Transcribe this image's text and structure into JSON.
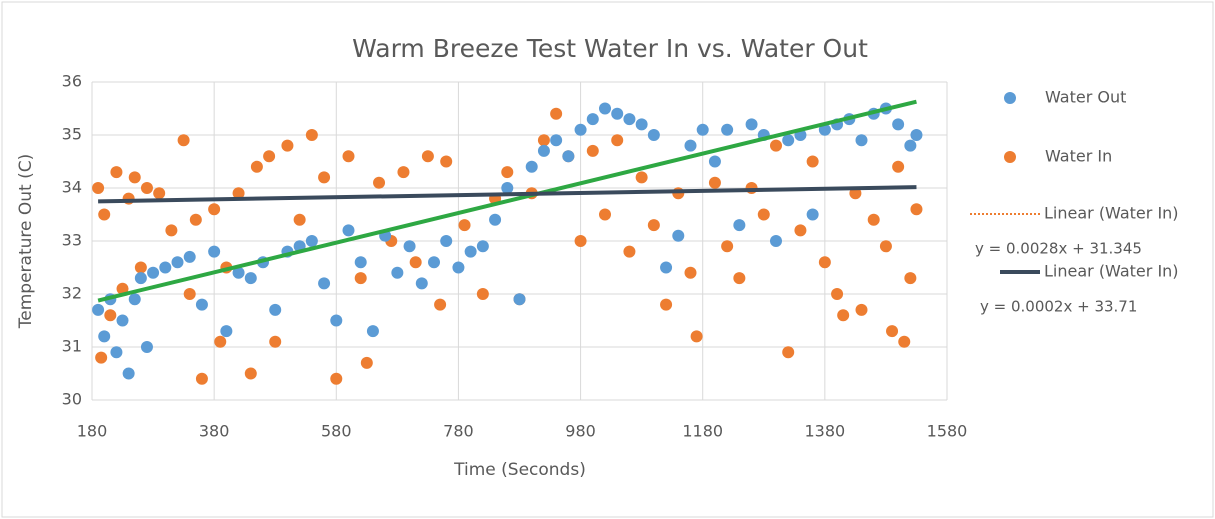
{
  "chart_data": {
    "type": "scatter",
    "title": "Warm Breeze Test Water In vs. Water Out",
    "x_label": "Time (Seconds)",
    "y_label": "Temperature Out (C)",
    "xlim": [
      180,
      1580
    ],
    "xticks": [
      180,
      380,
      580,
      780,
      980,
      1180,
      1380,
      1580
    ],
    "ylim": [
      30,
      36
    ],
    "yticks": [
      30,
      31,
      32,
      33,
      34,
      35,
      36
    ],
    "grid": true,
    "legend": "right",
    "series": [
      {
        "name": "Water Out",
        "color": "#5b9bd5",
        "x": [
          190,
          200,
          210,
          220,
          230,
          240,
          250,
          260,
          270,
          280,
          300,
          320,
          340,
          360,
          380,
          400,
          420,
          440,
          460,
          480,
          500,
          520,
          540,
          560,
          580,
          600,
          620,
          640,
          660,
          680,
          700,
          720,
          740,
          760,
          780,
          800,
          820,
          840,
          860,
          880,
          900,
          920,
          940,
          960,
          980,
          1000,
          1020,
          1040,
          1060,
          1080,
          1100,
          1120,
          1140,
          1160,
          1180,
          1200,
          1220,
          1240,
          1260,
          1280,
          1300,
          1320,
          1340,
          1360,
          1380,
          1400,
          1420,
          1440,
          1460,
          1480,
          1500,
          1520,
          1530
        ],
        "values": [
          31.7,
          31.2,
          31.9,
          30.9,
          31.5,
          30.5,
          31.9,
          32.3,
          31.0,
          32.4,
          32.5,
          32.6,
          32.7,
          31.8,
          32.8,
          31.3,
          32.4,
          32.3,
          32.6,
          31.7,
          32.8,
          32.9,
          33.0,
          32.2,
          31.5,
          33.2,
          32.6,
          31.3,
          33.1,
          32.4,
          32.9,
          32.2,
          32.6,
          33.0,
          32.5,
          32.8,
          32.9,
          33.4,
          34.0,
          31.9,
          34.4,
          34.7,
          34.9,
          34.6,
          35.1,
          35.3,
          35.5,
          35.4,
          35.3,
          35.2,
          35.0,
          32.5,
          33.1,
          34.8,
          35.1,
          34.5,
          35.1,
          33.3,
          35.2,
          35.0,
          33.0,
          34.9,
          35.0,
          33.5,
          35.1,
          35.2,
          35.3,
          34.9,
          35.4,
          35.5,
          35.2,
          34.8,
          35.0
        ]
      },
      {
        "name": "Water In",
        "color": "#ed7d31",
        "x": [
          190,
          195,
          200,
          210,
          220,
          230,
          240,
          250,
          260,
          270,
          290,
          310,
          330,
          340,
          350,
          360,
          380,
          390,
          400,
          420,
          440,
          450,
          470,
          480,
          500,
          520,
          540,
          560,
          580,
          600,
          620,
          630,
          650,
          670,
          690,
          710,
          730,
          750,
          760,
          790,
          820,
          840,
          860,
          880,
          900,
          920,
          940,
          960,
          980,
          1000,
          1020,
          1040,
          1060,
          1080,
          1100,
          1120,
          1140,
          1160,
          1170,
          1200,
          1220,
          1240,
          1260,
          1280,
          1300,
          1320,
          1340,
          1360,
          1380,
          1400,
          1410,
          1430,
          1440,
          1460,
          1480,
          1490,
          1500,
          1510,
          1520,
          1530
        ],
        "values": [
          34.0,
          30.8,
          33.5,
          31.6,
          34.3,
          32.1,
          33.8,
          34.2,
          32.5,
          34.0,
          33.9,
          33.2,
          34.9,
          32.0,
          33.4,
          30.4,
          33.6,
          31.1,
          32.5,
          33.9,
          30.5,
          34.4,
          34.6,
          31.1,
          34.8,
          33.4,
          35.0,
          34.2,
          30.4,
          34.6,
          32.3,
          30.7,
          34.1,
          33.0,
          34.3,
          32.6,
          34.6,
          31.8,
          34.5,
          33.3,
          32.0,
          33.8,
          34.3,
          31.9,
          33.9,
          34.9,
          35.4,
          34.6,
          33.0,
          34.7,
          33.5,
          34.9,
          32.8,
          34.2,
          33.3,
          31.8,
          33.9,
          32.4,
          31.2,
          34.1,
          32.9,
          32.3,
          34.0,
          33.5,
          34.8,
          30.9,
          33.2,
          34.5,
          32.6,
          32.0,
          31.6,
          33.9,
          31.7,
          33.4,
          32.9,
          31.3,
          34.4,
          31.1,
          32.3,
          33.6
        ]
      }
    ],
    "trendlines": [
      {
        "name": "Linear (Water In)",
        "color": "#2ea843",
        "legend_color": "#ed7d31",
        "legend_style": "dotted",
        "equation": "y = 0.0028x + 31.345",
        "x": [
          190,
          1530
        ],
        "values": [
          31.877,
          35.629
        ]
      },
      {
        "name": "Linear (Water In)",
        "color": "#3a4a5c",
        "legend_color": "#3a4a5c",
        "legend_style": "solid",
        "equation": "y = 0.0002x + 33.71",
        "x": [
          190,
          1530
        ],
        "values": [
          33.748,
          34.016
        ]
      }
    ]
  }
}
